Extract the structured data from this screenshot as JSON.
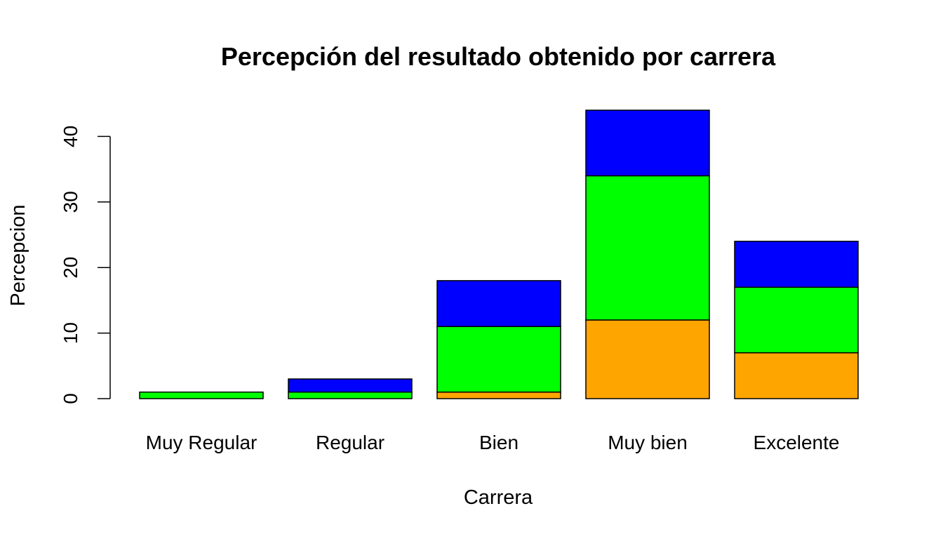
{
  "chart_data": {
    "type": "bar",
    "stacked": true,
    "title": "Percepción del resultado obtenido por carrera",
    "xlabel": "Carrera",
    "ylabel": "Percepcion",
    "categories": [
      "Muy Regular",
      "Regular",
      "Bien",
      "Muy bien",
      "Excelente"
    ],
    "series": [
      {
        "color": "#FFA500",
        "values": [
          0,
          0,
          1,
          12,
          7
        ]
      },
      {
        "color": "#00FF00",
        "values": [
          1,
          1,
          10,
          22,
          10
        ]
      },
      {
        "color": "#0000FF",
        "values": [
          0,
          2,
          7,
          10,
          7
        ]
      }
    ],
    "yticks": [
      0,
      10,
      20,
      30,
      40
    ],
    "ylim": [
      0,
      44
    ],
    "grid": false,
    "legend": "none"
  }
}
